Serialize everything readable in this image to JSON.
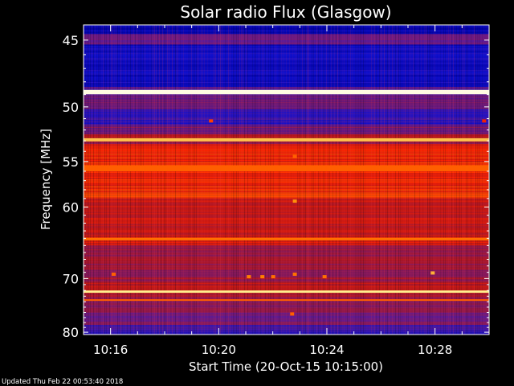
{
  "chart_data": {
    "type": "heatmap",
    "title": "Solar radio Flux (Glasgow)",
    "xlabel": "Start Time (20-Oct-15 10:15:00)",
    "ylabel": "Frequency [MHz]",
    "x_range_minutes": [
      10.25,
      10.5
    ],
    "x_start_minute": 15,
    "x_end_minute": 30,
    "x_ticks": [
      {
        "minute": 16,
        "label": "10:16"
      },
      {
        "minute": 20,
        "label": "10:20"
      },
      {
        "minute": 24,
        "label": "10:24"
      },
      {
        "minute": 28,
        "label": "10:28"
      }
    ],
    "ylim": [
      44,
      80.5
    ],
    "y_reversed": true,
    "y_scale": "reciprocal",
    "y_ticks": [
      45,
      50,
      55,
      60,
      70,
      80
    ],
    "colormap": [
      "#0000a0",
      "#1010d0",
      "#5a1a9a",
      "#8c1a5a",
      "#c01818",
      "#ff2200",
      "#ff8800",
      "#ffee88",
      "#ffffff"
    ],
    "background_rows": [
      {
        "f": [
          44.0,
          44.6
        ],
        "level": 0.05
      },
      {
        "f": [
          44.6,
          45.3
        ],
        "level": 0.28
      },
      {
        "f": [
          45.3,
          48.4
        ],
        "level": 0.1
      },
      {
        "f": [
          48.4,
          49.0
        ],
        "level": 0.25
      },
      {
        "f": [
          49.0,
          50.2
        ],
        "level": 0.3
      },
      {
        "f": [
          50.2,
          51.5
        ],
        "level": 0.18
      },
      {
        "f": [
          51.5,
          52.4
        ],
        "level": 0.32
      },
      {
        "f": [
          52.4,
          53.3
        ],
        "level": 0.45
      },
      {
        "f": [
          53.3,
          59.0
        ],
        "level": 0.62
      },
      {
        "f": [
          59.0,
          63.5
        ],
        "level": 0.5
      },
      {
        "f": [
          63.5,
          65.0
        ],
        "level": 0.55
      },
      {
        "f": [
          65.0,
          70.5
        ],
        "level": 0.42
      },
      {
        "f": [
          70.5,
          73.0
        ],
        "level": 0.5
      },
      {
        "f": [
          73.0,
          76.0
        ],
        "level": 0.4
      },
      {
        "f": [
          76.0,
          78.5
        ],
        "level": 0.33
      },
      {
        "f": [
          78.5,
          80.5
        ],
        "level": 0.18
      }
    ],
    "bright_lines": [
      {
        "f": 48.8,
        "level": 0.97,
        "width_mhz": 0.35
      },
      {
        "f": 52.9,
        "level": 0.82,
        "width_mhz": 0.3
      },
      {
        "f": 55.7,
        "level": 0.7,
        "width_mhz": 0.6
      },
      {
        "f": 64.1,
        "level": 0.72,
        "width_mhz": 0.35
      },
      {
        "f": 72.2,
        "level": 0.88,
        "width_mhz": 0.4
      },
      {
        "f": 73.7,
        "level": 0.7,
        "width_mhz": 0.3
      }
    ],
    "spots": [
      {
        "minute": 19.7,
        "f": 51.2,
        "level": 0.66
      },
      {
        "minute": 22.8,
        "f": 54.5,
        "level": 0.7
      },
      {
        "minute": 22.8,
        "f": 59.3,
        "level": 0.76
      },
      {
        "minute": 22.8,
        "f": 69.3,
        "level": 0.72
      },
      {
        "minute": 27.9,
        "f": 69.1,
        "level": 0.8
      },
      {
        "minute": 21.1,
        "f": 69.7,
        "level": 0.74
      },
      {
        "minute": 21.6,
        "f": 69.7,
        "level": 0.74
      },
      {
        "minute": 22.0,
        "f": 69.7,
        "level": 0.72
      },
      {
        "minute": 23.9,
        "f": 69.7,
        "level": 0.72
      },
      {
        "minute": 16.1,
        "f": 69.3,
        "level": 0.7
      },
      {
        "minute": 22.7,
        "f": 76.3,
        "level": 0.7
      },
      {
        "minute": 29.8,
        "f": 51.2,
        "level": 0.6
      }
    ],
    "footer": "Updated Thu Feb 22 00:53:40 2018"
  }
}
